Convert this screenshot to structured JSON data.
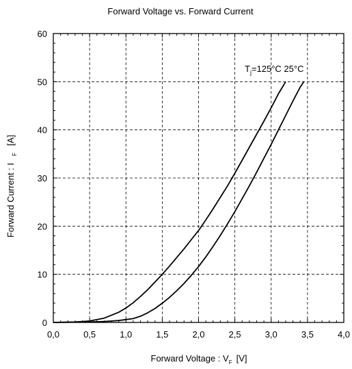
{
  "chart_data": {
    "type": "line",
    "title": "Forward Voltage  vs.  Forward Current",
    "xlabel": {
      "main": "Forward Voltage  :  V",
      "sub": "F",
      "unit": "[V]"
    },
    "ylabel": {
      "main": "Forward Current  :  I",
      "sub": "F",
      "unit": "[A]"
    },
    "xlim": [
      0,
      4
    ],
    "ylim": [
      0,
      60
    ],
    "x_ticks": [
      "0,0",
      "0,5",
      "1,0",
      "1,5",
      "2,0",
      "2,5",
      "3,0",
      "3,5",
      "4,0"
    ],
    "y_ticks": [
      "0",
      "10",
      "20",
      "30",
      "40",
      "50",
      "60"
    ],
    "grid": true,
    "annotation": {
      "prefix": "T",
      "sub": "j",
      "text": "=125°C 25°C"
    },
    "series": [
      {
        "name": "T_j=125°C",
        "points": [
          [
            0,
            0
          ],
          [
            0.3,
            0.1
          ],
          [
            0.5,
            0.3
          ],
          [
            0.7,
            0.9
          ],
          [
            0.9,
            2.1
          ],
          [
            1.0,
            3.0
          ],
          [
            1.1,
            4.1
          ],
          [
            1.2,
            5.4
          ],
          [
            1.3,
            6.8
          ],
          [
            1.4,
            8.4
          ],
          [
            1.5,
            10.0
          ],
          [
            1.6,
            11.7
          ],
          [
            1.7,
            13.5
          ],
          [
            1.8,
            15.3
          ],
          [
            1.9,
            17.2
          ],
          [
            2.0,
            19.1
          ],
          [
            2.1,
            21.3
          ],
          [
            2.2,
            23.6
          ],
          [
            2.3,
            26.0
          ],
          [
            2.4,
            28.4
          ],
          [
            2.5,
            31.0
          ],
          [
            2.6,
            33.7
          ],
          [
            2.7,
            36.4
          ],
          [
            2.8,
            39.1
          ],
          [
            2.9,
            41.8
          ],
          [
            3.0,
            44.6
          ],
          [
            3.1,
            47.5
          ],
          [
            3.2,
            50.0
          ]
        ]
      },
      {
        "name": "25°C",
        "points": [
          [
            0,
            0
          ],
          [
            0.5,
            0.1
          ],
          [
            0.7,
            0.2
          ],
          [
            0.9,
            0.4
          ],
          [
            1.0,
            0.6
          ],
          [
            1.1,
            0.8
          ],
          [
            1.2,
            1.3
          ],
          [
            1.3,
            2.0
          ],
          [
            1.4,
            2.9
          ],
          [
            1.5,
            4.0
          ],
          [
            1.6,
            5.2
          ],
          [
            1.7,
            6.6
          ],
          [
            1.8,
            8.1
          ],
          [
            1.9,
            9.8
          ],
          [
            2.0,
            11.6
          ],
          [
            2.1,
            13.6
          ],
          [
            2.2,
            15.8
          ],
          [
            2.3,
            18.1
          ],
          [
            2.4,
            20.5
          ],
          [
            2.5,
            23.0
          ],
          [
            2.6,
            25.7
          ],
          [
            2.7,
            28.4
          ],
          [
            2.8,
            31.2
          ],
          [
            2.9,
            34.1
          ],
          [
            3.0,
            37.0
          ],
          [
            3.1,
            40.0
          ],
          [
            3.2,
            43.0
          ],
          [
            3.3,
            46.0
          ],
          [
            3.4,
            48.9
          ],
          [
            3.45,
            50.0
          ]
        ]
      }
    ]
  }
}
